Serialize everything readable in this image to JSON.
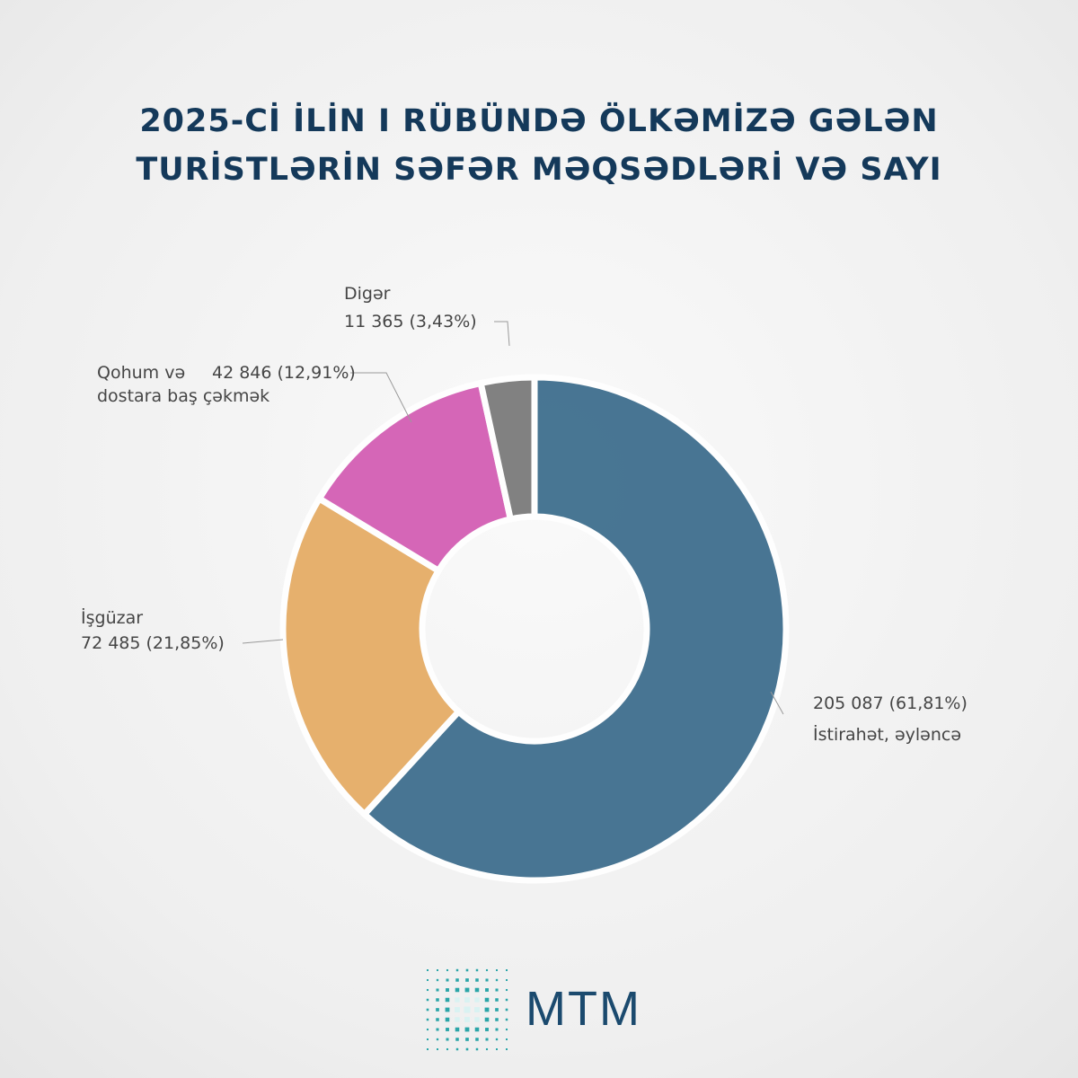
{
  "chart_data": {
    "type": "pie",
    "title": "2025-Cİ İLİN I RÜBÜNDƏ ÖLKƏMİZƏ GƏLƏN TURİSTLƏRİN SƏFƏR MƏQSƏDLƏRİ VƏ SAYI",
    "categories": [
      "İstirahət, əyləncə",
      "İşgüzar",
      "Qohum və dostara baş çəkmək",
      "Digər"
    ],
    "values": [
      205087,
      72485,
      42846,
      11365
    ],
    "value_labels": [
      "205 087 (61,81%)",
      "72 485 (21,85%)",
      "42 846 (12,91%)",
      "11 365 (3,43%)"
    ],
    "colors": [
      "#3f6f8e",
      "#e6ad66",
      "#d45fb4",
      "#7b7b7b"
    ],
    "logo": "MTM"
  }
}
